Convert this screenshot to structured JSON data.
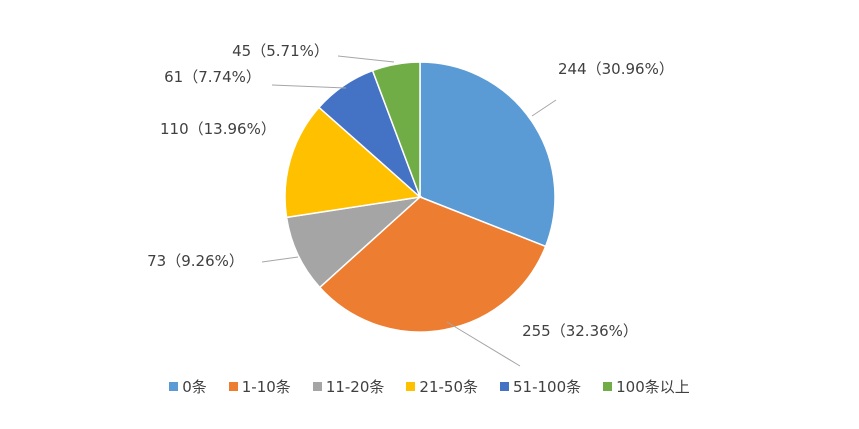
{
  "chart_data": {
    "type": "pie",
    "categories": [
      "0条",
      "1-10条",
      "11-20条",
      "21-50条",
      "51-100条",
      "100条以上"
    ],
    "values": [
      244,
      255,
      73,
      110,
      61,
      45
    ],
    "value_labels": [
      "244（30.96%）",
      "255（32.36%）",
      "73（9.26%）",
      "110（13.96%）",
      "61（7.74%）",
      "45（5.71%）"
    ],
    "colors": [
      "#5b9bd5",
      "#ed7d31",
      "#a5a5a5",
      "#ffc000",
      "#4472c4",
      "#70ad47"
    ],
    "legend": "bottom"
  }
}
